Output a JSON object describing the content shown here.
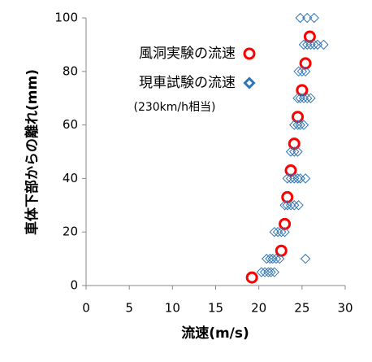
{
  "chart_data": {
    "type": "scatter",
    "xlabel": "流速(m/s)",
    "ylabel": "車体下部からの離れ(mm)",
    "annotation": "(230km/h相当)",
    "xlim": [
      0,
      30
    ],
    "xticks": [
      0,
      5,
      10,
      15,
      20,
      25,
      30
    ],
    "ylim": [
      0,
      100
    ],
    "yticks": [
      0,
      20,
      40,
      60,
      80,
      100
    ],
    "grid": false,
    "series": [
      {
        "name": "風洞実験の流速",
        "color": "#ff0000",
        "marker": "circle",
        "x": [
          19.2,
          22.6,
          23.0,
          23.3,
          23.7,
          24.1,
          24.5,
          25.0,
          25.4,
          25.9
        ],
        "y": [
          3,
          13,
          23,
          33,
          43,
          53,
          63,
          73,
          83,
          93
        ]
      },
      {
        "name": "現車試験の流速",
        "color": "#2e75b6",
        "marker": "diamond",
        "x": [
          24.8,
          25.6,
          26.4,
          25.2,
          25.6,
          26.0,
          26.4,
          26.8,
          27.5,
          24.6,
          25.0,
          25.4,
          24.5,
          24.8,
          25.2,
          25.6,
          26.0,
          24.1,
          24.5,
          24.8,
          25.2,
          23.7,
          24.1,
          24.5,
          23.3,
          23.7,
          24.1,
          24.5,
          24.8,
          25.4,
          23.0,
          23.3,
          23.7,
          24.1,
          24.6,
          21.8,
          22.2,
          22.6,
          23.0,
          20.9,
          21.3,
          21.6,
          22.0,
          22.4,
          25.4,
          20.3,
          20.7,
          21.1,
          21.4,
          21.8
        ],
        "y": [
          100,
          100,
          100,
          90,
          90,
          90,
          90,
          90,
          90,
          80,
          80,
          80,
          70,
          70,
          70,
          70,
          70,
          60,
          60,
          60,
          60,
          50,
          50,
          50,
          40,
          40,
          40,
          40,
          40,
          40,
          30,
          30,
          30,
          30,
          30,
          20,
          20,
          20,
          20,
          10,
          10,
          10,
          10,
          10,
          10,
          5,
          5,
          5,
          5,
          5
        ]
      }
    ]
  }
}
